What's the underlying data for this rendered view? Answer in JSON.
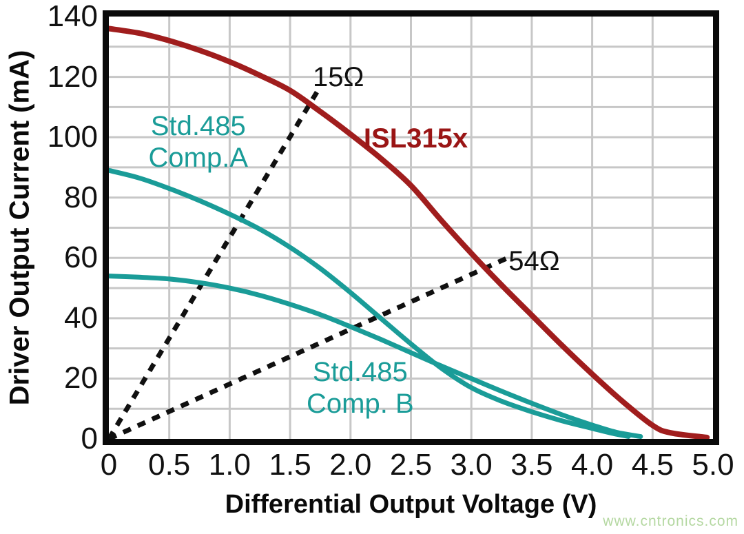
{
  "page": {
    "background": "#ffffff"
  },
  "watermark": {
    "text": "www.cntronics.com",
    "color": "#b5d8a2"
  },
  "chart_data": {
    "type": "line",
    "title": "",
    "xlabel": "Differential Output Voltage (V)",
    "ylabel": "Driver Output Current (mA)",
    "xlim": [
      0,
      5
    ],
    "ylim": [
      0,
      140
    ],
    "grid": {
      "on": true,
      "x_step": 0.5,
      "y_step": 10,
      "color": "#c7c7c7",
      "line_width": 3
    },
    "axis_color": "#0a0a0a",
    "x_ticks": {
      "values": [
        0,
        0.5,
        1,
        1.5,
        2,
        2.5,
        3,
        3.5,
        4,
        4.5,
        5
      ],
      "labels": [
        "0",
        "0.5",
        "1.0",
        "1.5",
        "2.0",
        "2.5",
        "3.0",
        "3.5",
        "4.0",
        "4.5",
        "5.0"
      ]
    },
    "y_ticks": {
      "values": [
        0,
        20,
        40,
        60,
        80,
        100,
        120,
        140
      ],
      "labels": [
        "0",
        "20",
        "40",
        "60",
        "80",
        "100",
        "120",
        "140"
      ]
    },
    "series": [
      {
        "name": "load-line-15ohm",
        "label": "15Ω",
        "kind": "load-line",
        "color": "#101010",
        "dash": "12 11",
        "width": 7,
        "points": [
          [
            0,
            0
          ],
          [
            1.73,
            115.5
          ]
        ]
      },
      {
        "name": "load-line-54ohm",
        "label": "54Ω",
        "kind": "load-line",
        "color": "#101010",
        "dash": "12 11",
        "width": 7,
        "points": [
          [
            0,
            0
          ],
          [
            3.3,
            60
          ]
        ]
      },
      {
        "name": "std485-comp-b",
        "label": "Std.485 Comp. B",
        "kind": "curve",
        "color": "#1a9c98",
        "dash": "none",
        "width": 7,
        "points": [
          [
            0,
            54
          ],
          [
            0.25,
            53.6
          ],
          [
            0.5,
            53
          ],
          [
            0.75,
            51.8
          ],
          [
            1,
            50
          ],
          [
            1.25,
            47.6
          ],
          [
            1.5,
            44.6
          ],
          [
            1.75,
            41.2
          ],
          [
            2,
            37.2
          ],
          [
            2.25,
            33
          ],
          [
            2.5,
            28.6
          ],
          [
            2.75,
            24.2
          ],
          [
            3,
            20
          ],
          [
            3.25,
            15.8
          ],
          [
            3.5,
            11.8
          ],
          [
            3.75,
            8
          ],
          [
            4,
            4.6
          ],
          [
            4.2,
            2.2
          ],
          [
            4.4,
            0.8
          ]
        ]
      },
      {
        "name": "std485-comp-a",
        "label": "Std.485 Comp.A",
        "kind": "curve",
        "color": "#1a9c98",
        "dash": "none",
        "width": 7,
        "points": [
          [
            0,
            89
          ],
          [
            0.25,
            86.5
          ],
          [
            0.5,
            83
          ],
          [
            0.75,
            79
          ],
          [
            1,
            74.5
          ],
          [
            1.25,
            69.5
          ],
          [
            1.5,
            63.5
          ],
          [
            1.75,
            56.5
          ],
          [
            2,
            48.5
          ],
          [
            2.25,
            40
          ],
          [
            2.5,
            31.5
          ],
          [
            2.75,
            23.5
          ],
          [
            3,
            17
          ],
          [
            3.25,
            12.5
          ],
          [
            3.5,
            9
          ],
          [
            3.75,
            6
          ],
          [
            4,
            3.5
          ],
          [
            4.15,
            2
          ],
          [
            4.3,
            0.8
          ]
        ]
      },
      {
        "name": "isl315x",
        "label": "ISL315x",
        "kind": "curve",
        "color": "#a01d1d",
        "dash": "none",
        "width": 8,
        "points": [
          [
            0,
            136
          ],
          [
            0.25,
            134.5
          ],
          [
            0.5,
            132
          ],
          [
            0.75,
            128.8
          ],
          [
            1,
            125
          ],
          [
            1.25,
            120.5
          ],
          [
            1.5,
            115.5
          ],
          [
            1.75,
            108.5
          ],
          [
            2,
            101
          ],
          [
            2.25,
            93
          ],
          [
            2.5,
            84
          ],
          [
            2.75,
            72.5
          ],
          [
            3,
            61.5
          ],
          [
            3.25,
            51
          ],
          [
            3.5,
            41
          ],
          [
            3.75,
            31
          ],
          [
            4,
            21.5
          ],
          [
            4.25,
            12.5
          ],
          [
            4.5,
            4.5
          ],
          [
            4.65,
            2
          ],
          [
            4.95,
            0.5
          ]
        ]
      }
    ],
    "annotations": [
      {
        "name": "label-15ohm",
        "lines": [
          "15Ω"
        ],
        "x": 1.9,
        "y": 120,
        "color": "#101010",
        "bold": false
      },
      {
        "name": "label-isl315x",
        "lines": [
          "ISL315x"
        ],
        "x": 2.54,
        "y": 99.5,
        "color": "#9a1515",
        "bold": true
      },
      {
        "name": "label-std485-comp-a",
        "lines": [
          "Std.485",
          "Comp.A"
        ],
        "x": 0.74,
        "y": 98.5,
        "color": "#1a9c98",
        "bold": false
      },
      {
        "name": "label-54ohm",
        "lines": [
          "54Ω"
        ],
        "x": 3.52,
        "y": 59,
        "color": "#101010",
        "bold": false
      },
      {
        "name": "label-std485-comp-b",
        "lines": [
          "Std.485",
          "Comp. B"
        ],
        "x": 2.08,
        "y": 17,
        "color": "#1a9c98",
        "bold": false
      }
    ]
  }
}
